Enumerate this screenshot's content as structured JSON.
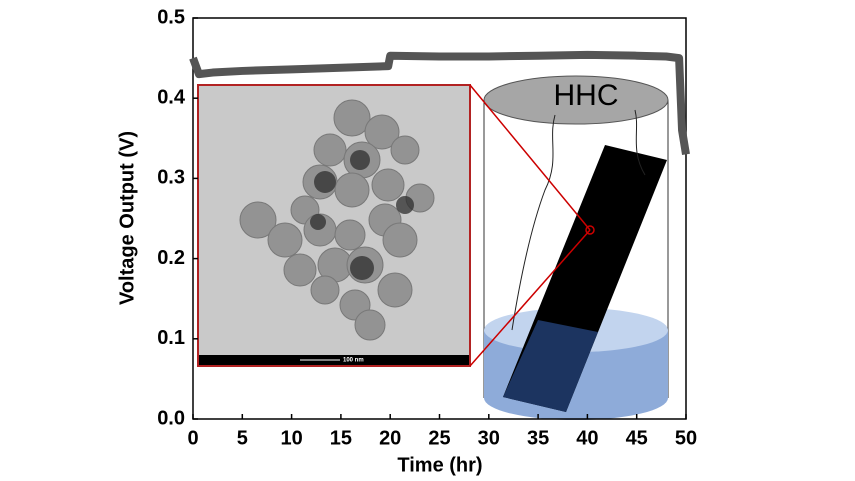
{
  "chart_data": {
    "type": "line",
    "xlabel": "Time (hr)",
    "ylabel": "Voltage Output (V)",
    "x": [
      0,
      0.3,
      0.6,
      2,
      5,
      10,
      15,
      19.8,
      20,
      25,
      30,
      35,
      40,
      45,
      48,
      49.3,
      49.6,
      50
    ],
    "series": [
      {
        "color": "#555555",
        "values": [
          0.45,
          0.44,
          0.43,
          0.432,
          0.434,
          0.436,
          0.438,
          0.44,
          0.453,
          0.452,
          0.452,
          0.453,
          0.454,
          0.453,
          0.452,
          0.45,
          0.36,
          0.33
        ]
      }
    ],
    "xlim": [
      0,
      50
    ],
    "xticks": [
      0,
      5,
      10,
      15,
      20,
      25,
      30,
      35,
      40,
      45,
      50
    ],
    "ylim": [
      0,
      0.5
    ],
    "yticks": [
      {
        "value": 0,
        "label": "0.0"
      },
      0.1,
      0.2,
      0.3,
      0.4,
      0.5
    ],
    "annotations": [
      "HHC",
      "100 nm"
    ]
  }
}
